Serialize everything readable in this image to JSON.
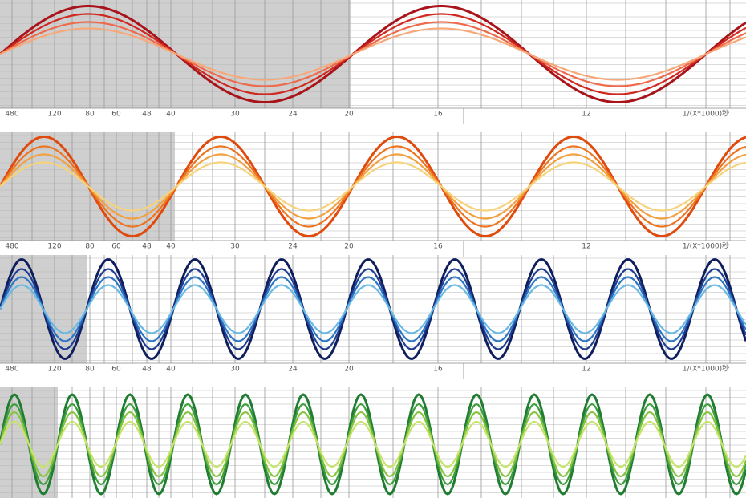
{
  "panels": [
    {
      "scale_labels": [
        "480",
        "120",
        "80",
        "60",
        "48",
        "40",
        "30",
        "24",
        "20",
        "16",
        "12",
        "1/(X*1000)秒"
      ]
    },
    {
      "scale_labels": [
        "480",
        "120",
        "80",
        "60",
        "48",
        "40",
        "30",
        "24",
        "20",
        "16",
        "12",
        "1/(X*1000)秒"
      ]
    },
    {
      "scale_labels": [
        "480",
        "120",
        "80",
        "60",
        "48",
        "40",
        "30",
        "24",
        "20",
        "16",
        "12",
        "1/(X*1000)秒"
      ]
    }
  ]
}
